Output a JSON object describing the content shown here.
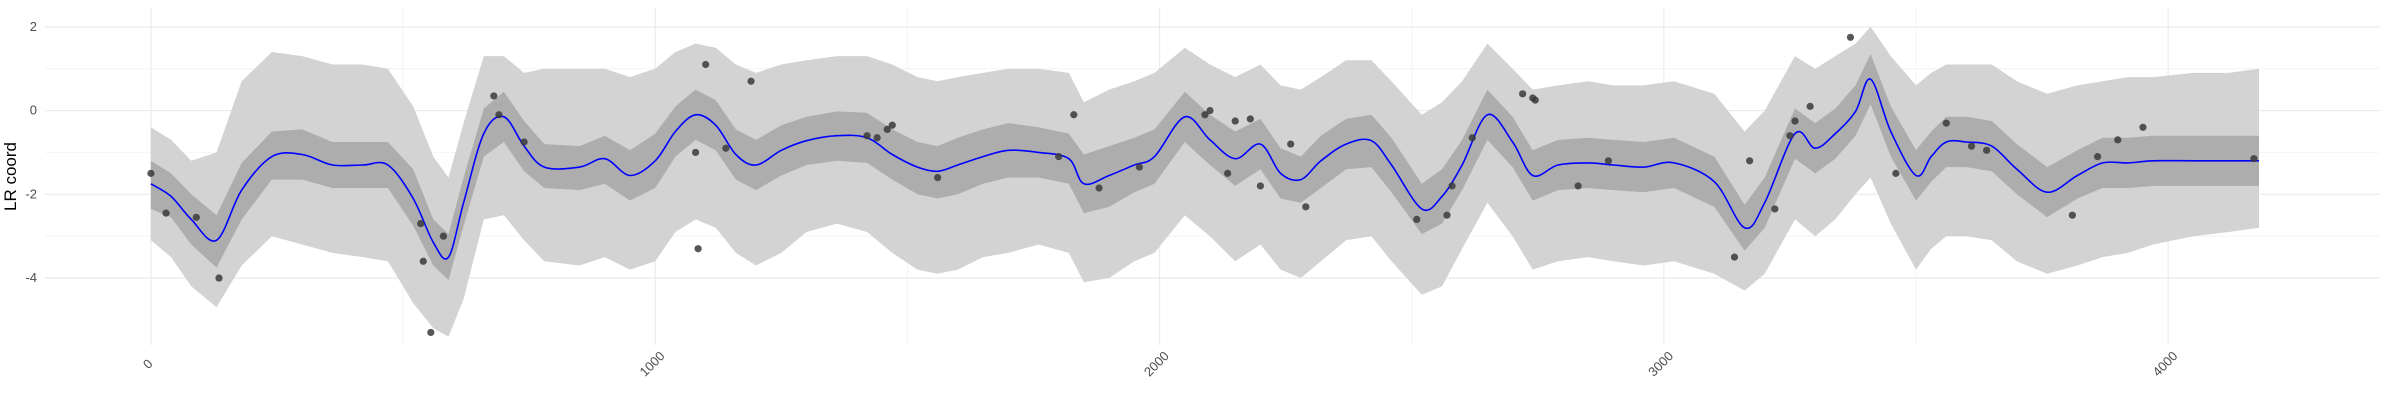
{
  "chart_data": {
    "type": "line",
    "title": "",
    "xlabel": "",
    "ylabel": "LR coord",
    "xlim": [
      -210,
      4420
    ],
    "ylim": [
      -5.6,
      2.45
    ],
    "grid": true,
    "x_ticks": [
      {
        "value": 0,
        "label": "0"
      },
      {
        "value": 1000,
        "label": "1000"
      },
      {
        "value": 2000,
        "label": "2000"
      },
      {
        "value": 3000,
        "label": "3000"
      },
      {
        "value": 4000,
        "label": "4000"
      }
    ],
    "y_ticks": [
      {
        "value": 2,
        "label": "2"
      },
      {
        "value": 0,
        "label": "0"
      },
      {
        "value": -2,
        "label": "-2"
      },
      {
        "value": -4,
        "label": "-4"
      }
    ],
    "colors": {
      "line": "#0000ff",
      "inner_band": "#adadad",
      "outer_band": "#d3d3d3",
      "points": "#3a3a3a",
      "grid_major": "#ebebeb",
      "grid_minor": "#f4f4f4"
    },
    "series": [
      {
        "type": "line",
        "x": [
          0,
          40,
          80,
          130,
          180,
          240,
          300,
          360,
          420,
          470,
          520,
          560,
          590,
          620,
          660,
          700,
          740,
          780,
          850,
          900,
          950,
          1000,
          1040,
          1080,
          1120,
          1160,
          1200,
          1250,
          1300,
          1360,
          1420,
          1470,
          1520,
          1560,
          1600,
          1650,
          1700,
          1760,
          1820,
          1850,
          1900,
          1950,
          1990,
          2050,
          2100,
          2150,
          2200,
          2240,
          2280,
          2320,
          2370,
          2420,
          2460,
          2520,
          2560,
          2600,
          2650,
          2700,
          2740,
          2790,
          2850,
          2900,
          2960,
          3020,
          3100,
          3160,
          3200,
          3260,
          3300,
          3340,
          3380,
          3410,
          3450,
          3500,
          3530,
          3560,
          3600,
          3650,
          3700,
          3760,
          3820,
          3870,
          3920,
          3970,
          4050,
          4120,
          4180
        ],
        "y": [
          -1.75,
          -2.05,
          -2.6,
          -3.1,
          -1.9,
          -1.1,
          -1.05,
          -1.3,
          -1.3,
          -1.3,
          -2.1,
          -3.15,
          -3.5,
          -2.2,
          -0.55,
          -0.15,
          -0.85,
          -1.35,
          -1.35,
          -1.15,
          -1.55,
          -1.2,
          -0.5,
          -0.1,
          -0.35,
          -1.05,
          -1.3,
          -0.95,
          -0.72,
          -0.6,
          -0.65,
          -1.05,
          -1.35,
          -1.45,
          -1.3,
          -1.1,
          -0.95,
          -1.0,
          -1.15,
          -1.75,
          -1.55,
          -1.3,
          -1.1,
          -0.15,
          -0.7,
          -1.15,
          -0.8,
          -1.5,
          -1.65,
          -1.2,
          -0.8,
          -0.72,
          -1.3,
          -2.35,
          -2.05,
          -1.3,
          -0.1,
          -0.75,
          -1.55,
          -1.3,
          -1.25,
          -1.3,
          -1.35,
          -1.25,
          -1.7,
          -2.8,
          -2.2,
          -0.55,
          -0.9,
          -0.55,
          -0.02,
          0.75,
          -0.5,
          -1.55,
          -1.1,
          -0.75,
          -0.75,
          -0.85,
          -1.4,
          -1.95,
          -1.55,
          -1.25,
          -1.25,
          -1.2,
          -1.2,
          -1.2,
          -1.2
        ]
      },
      {
        "type": "band",
        "name": "inner",
        "x": [
          0,
          40,
          80,
          130,
          180,
          240,
          300,
          360,
          420,
          470,
          520,
          560,
          590,
          620,
          660,
          700,
          740,
          780,
          850,
          900,
          950,
          1000,
          1040,
          1080,
          1120,
          1160,
          1200,
          1250,
          1300,
          1360,
          1420,
          1470,
          1520,
          1560,
          1600,
          1650,
          1700,
          1760,
          1820,
          1850,
          1900,
          1950,
          1990,
          2050,
          2100,
          2150,
          2200,
          2240,
          2280,
          2320,
          2370,
          2420,
          2460,
          2520,
          2560,
          2600,
          2650,
          2700,
          2740,
          2790,
          2850,
          2900,
          2960,
          3020,
          3100,
          3160,
          3200,
          3260,
          3300,
          3340,
          3380,
          3410,
          3450,
          3500,
          3530,
          3560,
          3600,
          3650,
          3700,
          3760,
          3820,
          3870,
          3920,
          3970,
          4050,
          4120,
          4180
        ],
        "lower": [
          -2.35,
          -2.55,
          -3.2,
          -3.75,
          -2.6,
          -1.65,
          -1.65,
          -1.85,
          -1.85,
          -1.85,
          -2.75,
          -3.7,
          -4.05,
          -2.75,
          -1.1,
          -0.75,
          -1.45,
          -1.85,
          -1.9,
          -1.75,
          -2.15,
          -1.85,
          -1.1,
          -0.7,
          -0.95,
          -1.65,
          -1.9,
          -1.55,
          -1.3,
          -1.2,
          -1.25,
          -1.65,
          -2.0,
          -2.1,
          -2.0,
          -1.75,
          -1.6,
          -1.6,
          -1.75,
          -2.45,
          -2.3,
          -1.95,
          -1.75,
          -0.75,
          -1.3,
          -1.8,
          -1.4,
          -2.1,
          -2.2,
          -1.85,
          -1.4,
          -1.35,
          -1.95,
          -2.95,
          -2.7,
          -1.9,
          -0.7,
          -1.35,
          -2.15,
          -1.9,
          -1.85,
          -1.9,
          -1.95,
          -1.85,
          -2.3,
          -3.35,
          -2.8,
          -1.15,
          -1.5,
          -1.15,
          -0.6,
          0.15,
          -1.1,
          -2.15,
          -1.7,
          -1.35,
          -1.35,
          -1.45,
          -2.0,
          -2.55,
          -2.1,
          -1.85,
          -1.85,
          -1.8,
          -1.8,
          -1.8,
          -1.8
        ],
        "upper": [
          -1.2,
          -1.5,
          -2.0,
          -2.5,
          -1.25,
          -0.5,
          -0.45,
          -0.75,
          -0.75,
          -0.75,
          -1.4,
          -2.6,
          -2.95,
          -1.6,
          0.05,
          0.45,
          -0.25,
          -0.8,
          -0.85,
          -0.6,
          -0.95,
          -0.55,
          0.1,
          0.5,
          0.25,
          -0.45,
          -0.7,
          -0.35,
          -0.15,
          -0.02,
          -0.05,
          -0.45,
          -0.75,
          -0.85,
          -0.65,
          -0.45,
          -0.3,
          -0.4,
          -0.55,
          -1.05,
          -0.85,
          -0.65,
          -0.45,
          0.45,
          -0.1,
          -0.5,
          -0.2,
          -0.9,
          -1.1,
          -0.6,
          -0.2,
          -0.1,
          -0.65,
          -1.75,
          -1.4,
          -0.7,
          0.5,
          -0.15,
          -0.95,
          -0.7,
          -0.65,
          -0.7,
          -0.75,
          -0.65,
          -1.1,
          -2.25,
          -1.6,
          0.05,
          -0.3,
          0.05,
          0.6,
          1.35,
          0.1,
          -0.95,
          -0.5,
          -0.15,
          -0.15,
          -0.25,
          -0.8,
          -1.35,
          -0.95,
          -0.65,
          -0.65,
          -0.6,
          -0.6,
          -0.6,
          -0.6
        ]
      },
      {
        "type": "band",
        "name": "outer",
        "x": [
          0,
          40,
          80,
          130,
          180,
          240,
          300,
          360,
          420,
          470,
          520,
          560,
          590,
          620,
          660,
          700,
          740,
          780,
          850,
          900,
          950,
          1000,
          1040,
          1080,
          1120,
          1160,
          1200,
          1250,
          1300,
          1360,
          1420,
          1470,
          1520,
          1560,
          1600,
          1650,
          1700,
          1760,
          1820,
          1850,
          1900,
          1950,
          1990,
          2050,
          2100,
          2150,
          2200,
          2240,
          2280,
          2320,
          2370,
          2420,
          2460,
          2520,
          2560,
          2600,
          2650,
          2700,
          2740,
          2790,
          2850,
          2900,
          2960,
          3020,
          3100,
          3160,
          3200,
          3260,
          3300,
          3340,
          3380,
          3410,
          3450,
          3500,
          3530,
          3560,
          3600,
          3650,
          3700,
          3760,
          3820,
          3870,
          3920,
          3970,
          4050,
          4120,
          4180
        ],
        "lower": [
          -3.1,
          -3.5,
          -4.2,
          -4.7,
          -3.7,
          -3.0,
          -3.2,
          -3.4,
          -3.5,
          -3.6,
          -4.6,
          -5.2,
          -5.4,
          -4.5,
          -2.6,
          -2.5,
          -3.1,
          -3.6,
          -3.7,
          -3.5,
          -3.8,
          -3.6,
          -2.9,
          -2.6,
          -2.8,
          -3.4,
          -3.7,
          -3.4,
          -2.9,
          -2.7,
          -2.9,
          -3.4,
          -3.8,
          -3.9,
          -3.8,
          -3.5,
          -3.4,
          -3.2,
          -3.4,
          -4.1,
          -4.0,
          -3.6,
          -3.4,
          -2.5,
          -3.0,
          -3.6,
          -3.2,
          -3.8,
          -4.0,
          -3.6,
          -3.1,
          -3.0,
          -3.6,
          -4.4,
          -4.2,
          -3.3,
          -2.2,
          -3.0,
          -3.8,
          -3.6,
          -3.5,
          -3.6,
          -3.7,
          -3.6,
          -3.9,
          -4.3,
          -3.9,
          -2.6,
          -3.0,
          -2.6,
          -2.0,
          -1.6,
          -2.7,
          -3.8,
          -3.3,
          -3.0,
          -3.0,
          -3.1,
          -3.6,
          -3.9,
          -3.7,
          -3.5,
          -3.4,
          -3.2,
          -3.0,
          -2.9,
          -2.8
        ],
        "upper": [
          -0.4,
          -0.7,
          -1.2,
          -1.0,
          0.7,
          1.4,
          1.3,
          1.1,
          1.1,
          1.0,
          0.1,
          -1.1,
          -1.6,
          -0.3,
          1.3,
          1.3,
          0.9,
          1.0,
          1.0,
          1.0,
          0.8,
          1.0,
          1.4,
          1.6,
          1.5,
          1.1,
          0.9,
          1.1,
          1.2,
          1.3,
          1.3,
          1.1,
          0.8,
          0.7,
          0.8,
          0.9,
          1.0,
          1.0,
          0.9,
          0.2,
          0.5,
          0.7,
          0.9,
          1.5,
          1.1,
          0.8,
          1.1,
          0.6,
          0.5,
          0.8,
          1.2,
          1.2,
          0.7,
          -0.1,
          0.2,
          0.7,
          1.6,
          1.0,
          0.5,
          0.6,
          0.7,
          0.6,
          0.6,
          0.7,
          0.4,
          -0.5,
          0.0,
          1.3,
          1.0,
          1.3,
          1.6,
          2.0,
          1.3,
          0.6,
          0.9,
          1.1,
          1.1,
          1.1,
          0.7,
          0.4,
          0.6,
          0.7,
          0.8,
          0.8,
          0.9,
          0.9,
          1.0
        ]
      },
      {
        "type": "scatter",
        "x": [
          0,
          30,
          90,
          135,
          535,
          540,
          555,
          580,
          680,
          690,
          740,
          1080,
          1085,
          1100,
          1140,
          1190,
          1420,
          1440,
          1460,
          1470,
          1560,
          1800,
          1830,
          1880,
          1960,
          2090,
          2100,
          2135,
          2150,
          2180,
          2200,
          2260,
          2290,
          2510,
          2570,
          2580,
          2620,
          2720,
          2740,
          2745,
          2830,
          2890,
          3140,
          3170,
          3220,
          3250,
          3260,
          3290,
          3370,
          3460,
          3560,
          3610,
          3640,
          3810,
          3860,
          3900,
          3950,
          4170
        ],
        "y": [
          -1.5,
          -2.45,
          -2.55,
          -4.0,
          -2.7,
          -3.6,
          -5.3,
          -3.0,
          0.35,
          -0.1,
          -0.75,
          -1.0,
          -3.3,
          1.1,
          -0.9,
          0.7,
          -0.6,
          -0.65,
          -0.45,
          -0.35,
          -1.6,
          -1.1,
          -0.1,
          -1.85,
          -1.35,
          -0.1,
          0.0,
          -1.5,
          -0.25,
          -0.2,
          -1.8,
          -0.8,
          -2.3,
          -2.6,
          -2.5,
          -1.8,
          -0.65,
          0.4,
          0.3,
          0.25,
          -1.8,
          -1.2,
          -3.5,
          -1.2,
          -2.35,
          -0.6,
          -0.25,
          0.1,
          1.75,
          -1.5,
          -0.3,
          -0.85,
          -0.95,
          -2.5,
          -1.1,
          -0.7,
          -0.4,
          -1.15
        ]
      }
    ]
  }
}
